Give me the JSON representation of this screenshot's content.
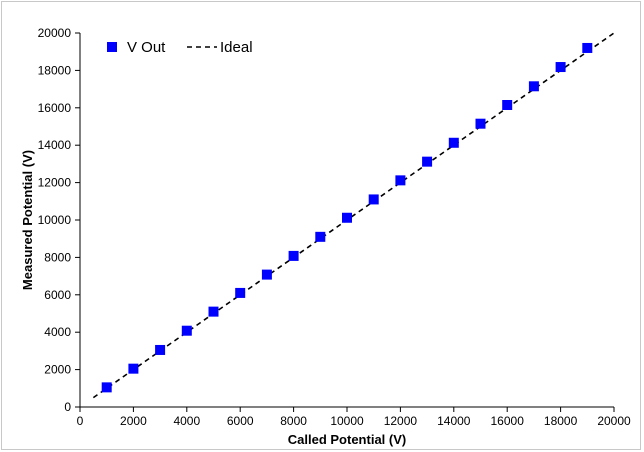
{
  "chart_data": {
    "type": "scatter",
    "title": "",
    "xlabel": "Called Potential (V)",
    "ylabel": "Measured Potential (V)",
    "xlim": [
      0,
      20000
    ],
    "ylim": [
      0,
      20000
    ],
    "xticks": [
      0,
      2000,
      4000,
      6000,
      8000,
      10000,
      12000,
      14000,
      16000,
      18000,
      20000
    ],
    "yticks": [
      0,
      2000,
      4000,
      6000,
      8000,
      10000,
      12000,
      14000,
      16000,
      18000,
      20000
    ],
    "grid": false,
    "legend_position": "top-left",
    "series": [
      {
        "name": "V Out",
        "type": "scatter",
        "marker": "square",
        "color": "#0000ff",
        "x": [
          1000,
          2000,
          3000,
          4000,
          5000,
          6000,
          7000,
          8000,
          9000,
          10000,
          11000,
          12000,
          13000,
          14000,
          15000,
          16000,
          17000,
          18000,
          19000
        ],
        "y": [
          1050,
          2050,
          3050,
          4080,
          5100,
          6100,
          7080,
          8080,
          9100,
          10120,
          11100,
          12120,
          13120,
          14130,
          15150,
          16150,
          17150,
          18180,
          19200
        ]
      },
      {
        "name": "Ideal",
        "type": "line",
        "style": "dashed",
        "color": "#000000",
        "x": [
          500,
          20000
        ],
        "y": [
          500,
          20000
        ]
      }
    ]
  }
}
